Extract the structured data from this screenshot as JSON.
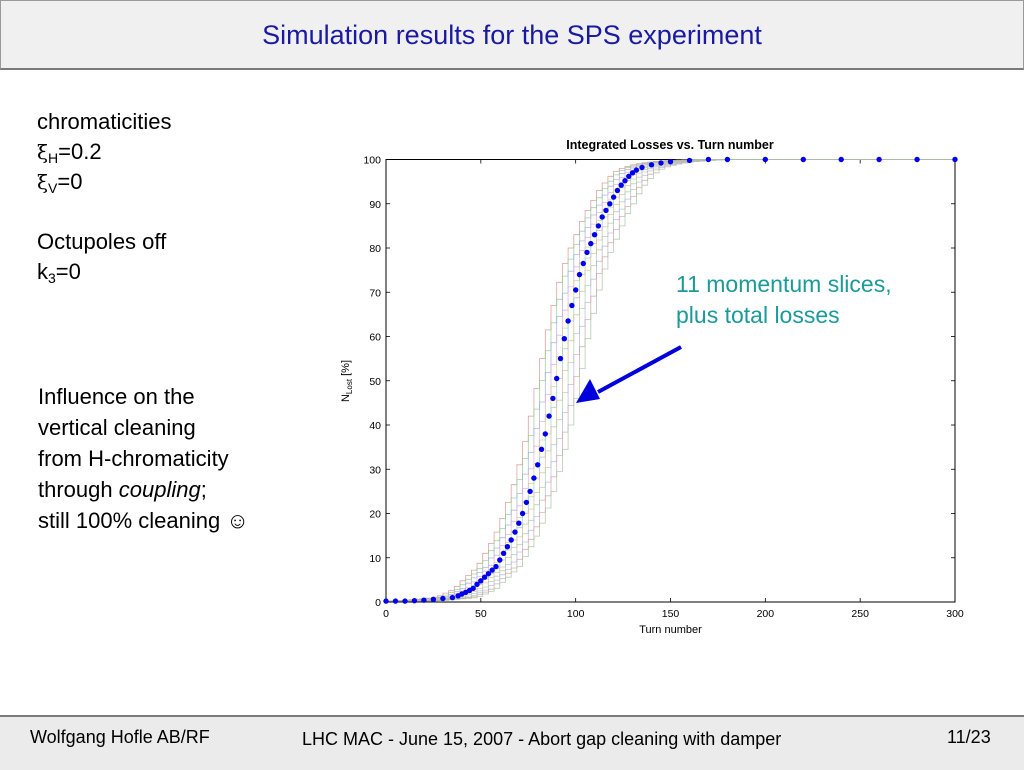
{
  "slide": {
    "title": "Simulation results for the SPS experiment",
    "title_color": "#1a1aa0",
    "left": {
      "heading": "chromaticities",
      "xi_symbol": "ξ",
      "xi_h_sub": "H",
      "xi_h_value": "=0.2",
      "xi_v_sub": "V",
      "xi_v_value": "=0",
      "octupoles": "Octupoles off",
      "k_base": "k",
      "k_sub": "3",
      "k_value": "=0"
    },
    "influence": {
      "line1": "Influence on the",
      "line2": "vertical cleaning",
      "line3": "from H-chromaticity",
      "line4_prefix": "through ",
      "line4_italic": "coupling",
      "line4_suffix": ";",
      "line5": "still 100% cleaning ☺"
    },
    "annotation": {
      "line1": "11 momentum slices,",
      "line2": "plus total losses",
      "color": "#1a9a9a",
      "arrow_color": "#0000dd"
    },
    "footer": {
      "left": "Wolfgang Hofle AB/RF",
      "center": "LHC MAC - June 15, 2007 - Abort gap cleaning with damper",
      "right": "11/23"
    }
  },
  "chart_data": {
    "type": "line",
    "title": "Integrated Losses vs. Turn number",
    "xlabel": "Turn number",
    "ylabel_main": "N",
    "ylabel_sub": "Lost",
    "ylabel_unit": " [%]",
    "xlim": [
      0,
      300
    ],
    "ylim": [
      0,
      100
    ],
    "xticks": [
      0,
      50,
      100,
      150,
      200,
      250,
      300
    ],
    "yticks": [
      0,
      10,
      20,
      30,
      40,
      50,
      60,
      70,
      80,
      90,
      100
    ],
    "grid": false,
    "series": [
      {
        "color": "#0000ee",
        "marker": "dot",
        "points": [
          [
            0,
            0.2
          ],
          [
            5,
            0.2
          ],
          [
            10,
            0.2
          ],
          [
            15,
            0.3
          ],
          [
            20,
            0.4
          ],
          [
            25,
            0.6
          ],
          [
            30,
            0.8
          ],
          [
            35,
            1.0
          ],
          [
            38,
            1.4
          ],
          [
            40,
            1.8
          ],
          [
            42,
            2.2
          ],
          [
            44,
            2.6
          ],
          [
            46,
            3.1
          ],
          [
            48,
            4.0
          ],
          [
            50,
            4.8
          ],
          [
            52,
            5.6
          ],
          [
            54,
            6.4
          ],
          [
            56,
            7.2
          ],
          [
            58,
            8.0
          ],
          [
            60,
            9.5
          ],
          [
            62,
            11.0
          ],
          [
            64,
            12.5
          ],
          [
            66,
            14.0
          ],
          [
            68,
            15.8
          ],
          [
            70,
            17.8
          ],
          [
            72,
            20.0
          ],
          [
            74,
            22.5
          ],
          [
            76,
            25.0
          ],
          [
            78,
            28.0
          ],
          [
            80,
            31.0
          ],
          [
            82,
            34.5
          ],
          [
            84,
            38.0
          ],
          [
            86,
            42.0
          ],
          [
            88,
            46.0
          ],
          [
            90,
            50.5
          ],
          [
            92,
            55.0
          ],
          [
            94,
            59.5
          ],
          [
            96,
            63.5
          ],
          [
            98,
            67.0
          ],
          [
            100,
            70.5
          ],
          [
            102,
            74.0
          ],
          [
            104,
            76.5
          ],
          [
            106,
            79.0
          ],
          [
            108,
            81.0
          ],
          [
            110,
            83.0
          ],
          [
            112,
            85.0
          ],
          [
            114,
            87.0
          ],
          [
            116,
            88.5
          ],
          [
            118,
            90.0
          ],
          [
            120,
            91.5
          ],
          [
            122,
            93.0
          ],
          [
            124,
            94.2
          ],
          [
            126,
            95.2
          ],
          [
            128,
            96.2
          ],
          [
            130,
            97.0
          ],
          [
            132,
            97.6
          ],
          [
            135,
            98.2
          ],
          [
            140,
            98.8
          ],
          [
            145,
            99.2
          ],
          [
            150,
            99.5
          ],
          [
            160,
            99.8
          ],
          [
            170,
            100
          ],
          [
            180,
            100
          ],
          [
            200,
            100
          ],
          [
            220,
            100
          ],
          [
            240,
            100
          ],
          [
            260,
            100
          ],
          [
            280,
            100
          ],
          [
            300,
            100
          ]
        ]
      }
    ]
  }
}
